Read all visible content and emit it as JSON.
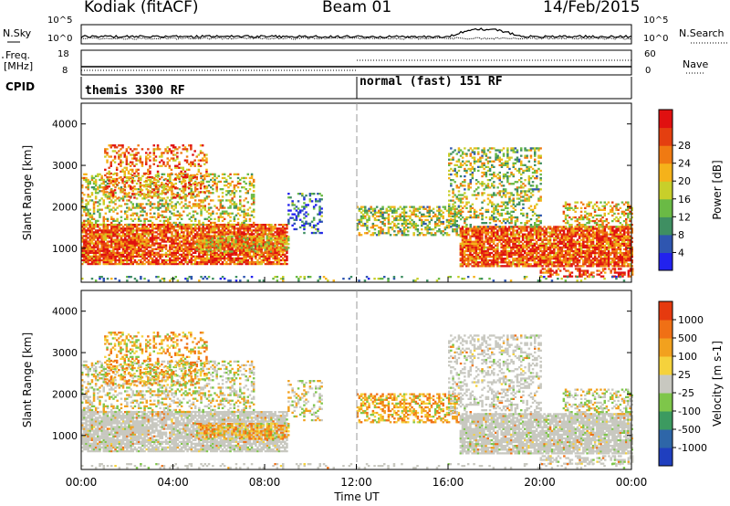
{
  "header": {
    "radar": "Kodiak (fitACF)",
    "beam": "Beam 01",
    "date": "14/Feb/2015"
  },
  "top_panels": {
    "nsky_label": "N.Sky",
    "nsky_ticks": [
      "10^5",
      "10^0"
    ],
    "nsearch_label": "N.Search",
    "nsearch_ticks": [
      "10^5",
      "10^0"
    ],
    "freq_label_1": "Freq.",
    "freq_label_2": "[MHz]",
    "freq_ticks": [
      "18",
      "8"
    ],
    "nave_label": "Nave",
    "nave_ticks": [
      "60",
      "0"
    ],
    "cpid_label": "CPID",
    "mode_left": "themis 3300 RF",
    "mode_right": "normal (fast) 151 RF"
  },
  "chart_data": [
    {
      "type": "heatmap",
      "title": "Power",
      "ylabel": "Slant Range [km]",
      "yticks": [
        "1000",
        "2000",
        "3000",
        "4000"
      ],
      "ylim": [
        180,
        4500
      ],
      "xlim": [
        0,
        24
      ],
      "colorbar_label": "Power [dB]",
      "colorbar_ticks": [
        "4",
        "8",
        "12",
        "16",
        "20",
        "24",
        "28"
      ],
      "colorbar_range": [
        0,
        30
      ],
      "colorbar_colors": [
        "#2222ee",
        "#2f56b0",
        "#3f8f62",
        "#6aba45",
        "#c8cf2a",
        "#f5b21a",
        "#f07a12",
        "#e43f10",
        "#e01010"
      ],
      "regions_note": "Scatter mostly 600-1500 km between 00:00-09:00 and 16:30-24:00; patchy echoes 1500-3500 km."
    },
    {
      "type": "heatmap",
      "title": "Velocity",
      "ylabel": "Slant Range [km]",
      "yticks": [
        "1000",
        "2000",
        "3000",
        "4000"
      ],
      "ylim": [
        180,
        4500
      ],
      "xlim": [
        0,
        24
      ],
      "colorbar_label": "Velocity [m s-1]",
      "colorbar_ticks": [
        "1000",
        "500",
        "100",
        "25",
        "-25",
        "-100",
        "-500",
        "-1000"
      ],
      "colorbar_colors": [
        "#1f3fbf",
        "#2e66a8",
        "#3c9a60",
        "#7ec64a",
        "#c8c8c0",
        "#f5d23c",
        "#f2a11e",
        "#f07015",
        "#e63a0f"
      ],
      "xticks": [
        "00:00",
        "04:00",
        "08:00",
        "12:00",
        "16:00",
        "20:00",
        "00:00"
      ],
      "xlabel": "Time UT"
    }
  ]
}
